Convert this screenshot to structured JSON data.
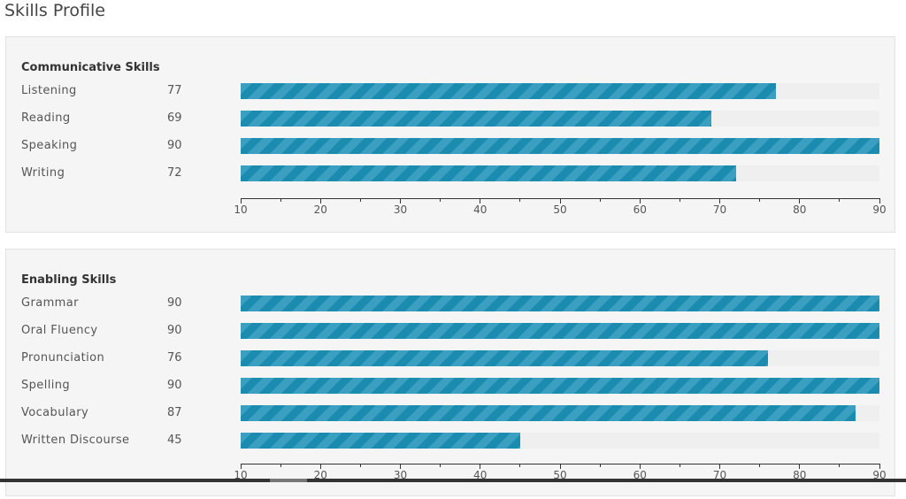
{
  "page": {
    "title": "Skills Profile"
  },
  "chart_data": [
    {
      "type": "bar",
      "orientation": "horizontal",
      "title": "Communicative Skills",
      "categories": [
        "Listening",
        "Reading",
        "Speaking",
        "Writing"
      ],
      "values": [
        77,
        69,
        90,
        72
      ],
      "xlim": [
        10,
        90
      ],
      "x_ticks": [
        10,
        20,
        30,
        40,
        50,
        60,
        70,
        80,
        90
      ],
      "x_tick_labels": [
        "10",
        "20",
        "30",
        "40",
        "50",
        "60",
        "70",
        "80",
        "90"
      ],
      "x_minor_ticks": [
        15,
        25,
        35,
        45,
        55,
        65,
        75,
        85
      ],
      "grid": false,
      "bar_color": "#1b8cb0",
      "stripe_color": "#3a9fc0"
    },
    {
      "type": "bar",
      "orientation": "horizontal",
      "title": "Enabling Skills",
      "categories": [
        "Grammar",
        "Oral Fluency",
        "Pronunciation",
        "Spelling",
        "Vocabulary",
        "Written Discourse"
      ],
      "values": [
        90,
        90,
        76,
        90,
        87,
        45
      ],
      "xlim": [
        10,
        90
      ],
      "x_ticks": [
        10,
        20,
        30,
        40,
        50,
        60,
        70,
        80,
        90
      ],
      "x_tick_labels": [
        "10",
        "20",
        "30",
        "40",
        "50",
        "60",
        "70",
        "80",
        "90"
      ],
      "x_minor_ticks": [
        15,
        25,
        35,
        45,
        55,
        65,
        75,
        85
      ],
      "grid": false,
      "bar_color": "#1b8cb0",
      "stripe_color": "#3a9fc0"
    }
  ]
}
